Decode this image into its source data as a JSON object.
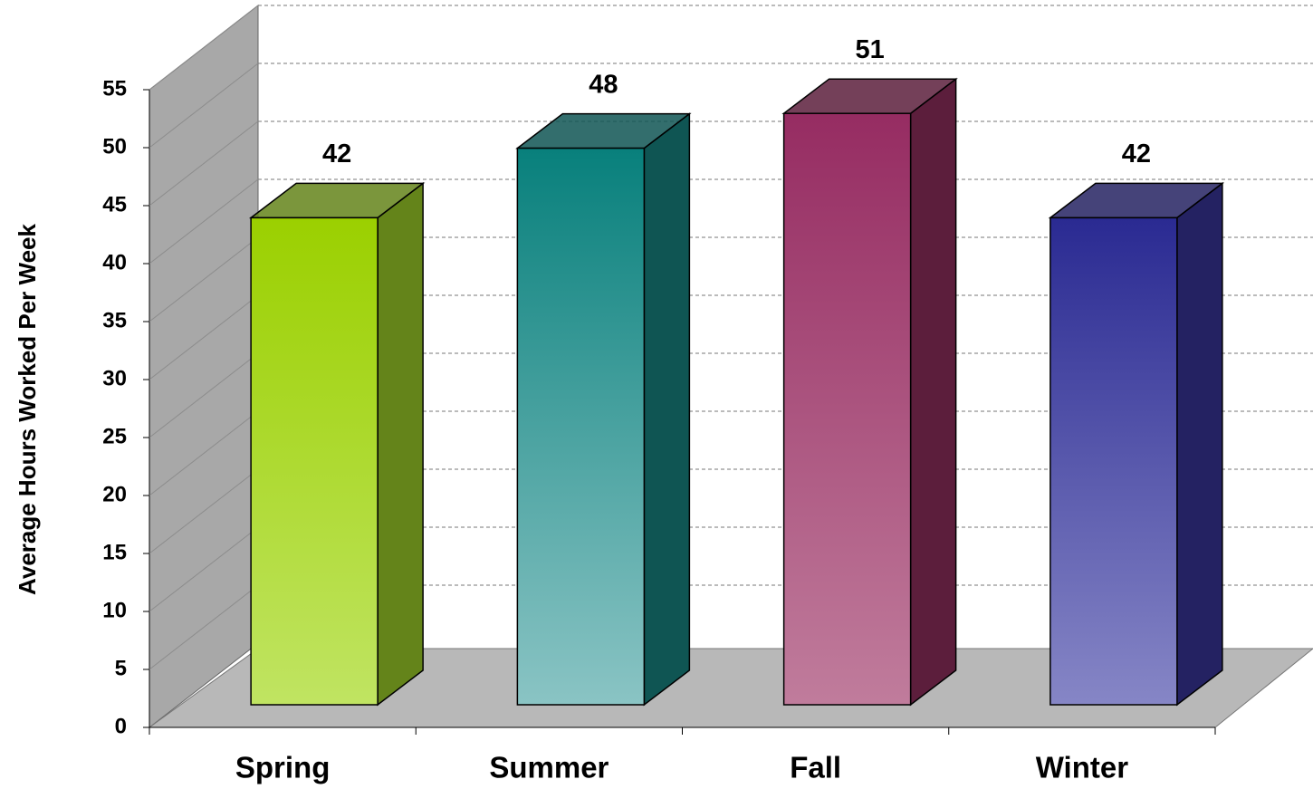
{
  "chart_data": {
    "type": "bar3d",
    "y_axis_label": "Average Hours Worked Per Week",
    "categories": [
      "Spring",
      "Summer",
      "Fall",
      "Winter"
    ],
    "values": [
      42,
      48,
      51,
      42
    ],
    "colors": [
      [
        "#9bd000",
        "#c0e462",
        "#64841a"
      ],
      [
        "#08807c",
        "#8ac4c4",
        "#0f5553"
      ],
      [
        "#962c62",
        "#c07c9c",
        "#5c1e3c"
      ],
      [
        "#2a2a92",
        "#8686c6",
        "#242262"
      ]
    ],
    "ylim": [
      0,
      55
    ],
    "yticks": [
      0,
      5,
      10,
      15,
      20,
      25,
      30,
      35,
      40,
      45,
      50,
      55
    ],
    "grid": true
  }
}
